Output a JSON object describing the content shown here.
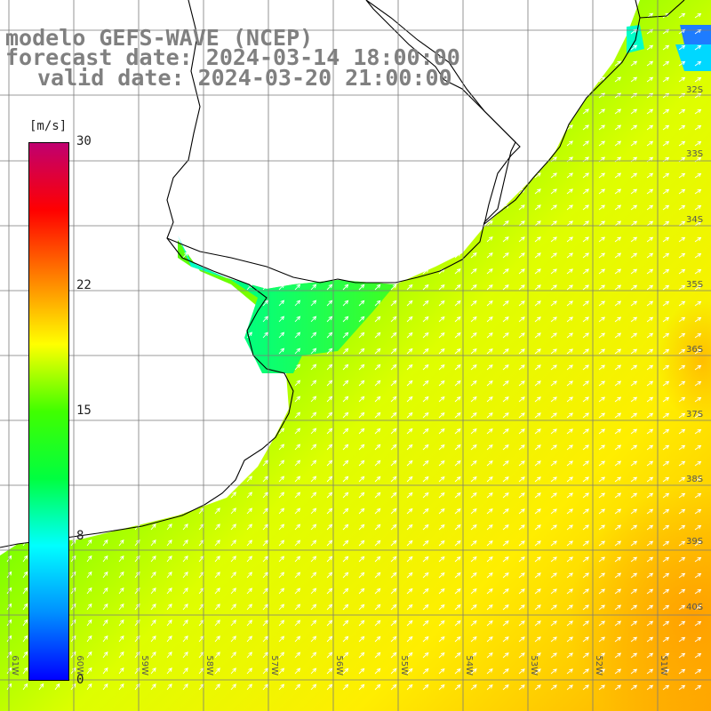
{
  "title": {
    "model": "modelo GEFS-WAVE (NCEP)",
    "forecast": "forecast date: 2024-03-14 18:00:00",
    "valid": "valid date: 2024-03-20 21:00:00"
  },
  "colorbar": {
    "unit": "[m/s]",
    "min": 0,
    "max": 30,
    "ticks": [
      "30",
      "22",
      "15",
      "8",
      "0"
    ],
    "tick_values": [
      30,
      22,
      15,
      8,
      0
    ],
    "colors": [
      "#0000ff",
      "#0090ff",
      "#00ffff",
      "#00ff40",
      "#40ff00",
      "#ffff00",
      "#ff8000",
      "#ff0000",
      "#c00070"
    ]
  },
  "grid": {
    "lat_labels": [
      "34S",
      "35S",
      "36S",
      "37S",
      "38S",
      "39S",
      "40S"
    ],
    "lon_labels": [
      "61W",
      "60W",
      "59W",
      "58W",
      "57W",
      "56W",
      "55W",
      "54W",
      "53W",
      "52W",
      "51W"
    ],
    "partial_labels": [
      "33S",
      "32S"
    ]
  },
  "map": {
    "variable": "wind speed (m/s)",
    "vector_field": "wind direction arrows (toward NE)",
    "land_color": "#ffffff",
    "coastline_color": "#000000",
    "gridline_color": "#808080"
  }
}
